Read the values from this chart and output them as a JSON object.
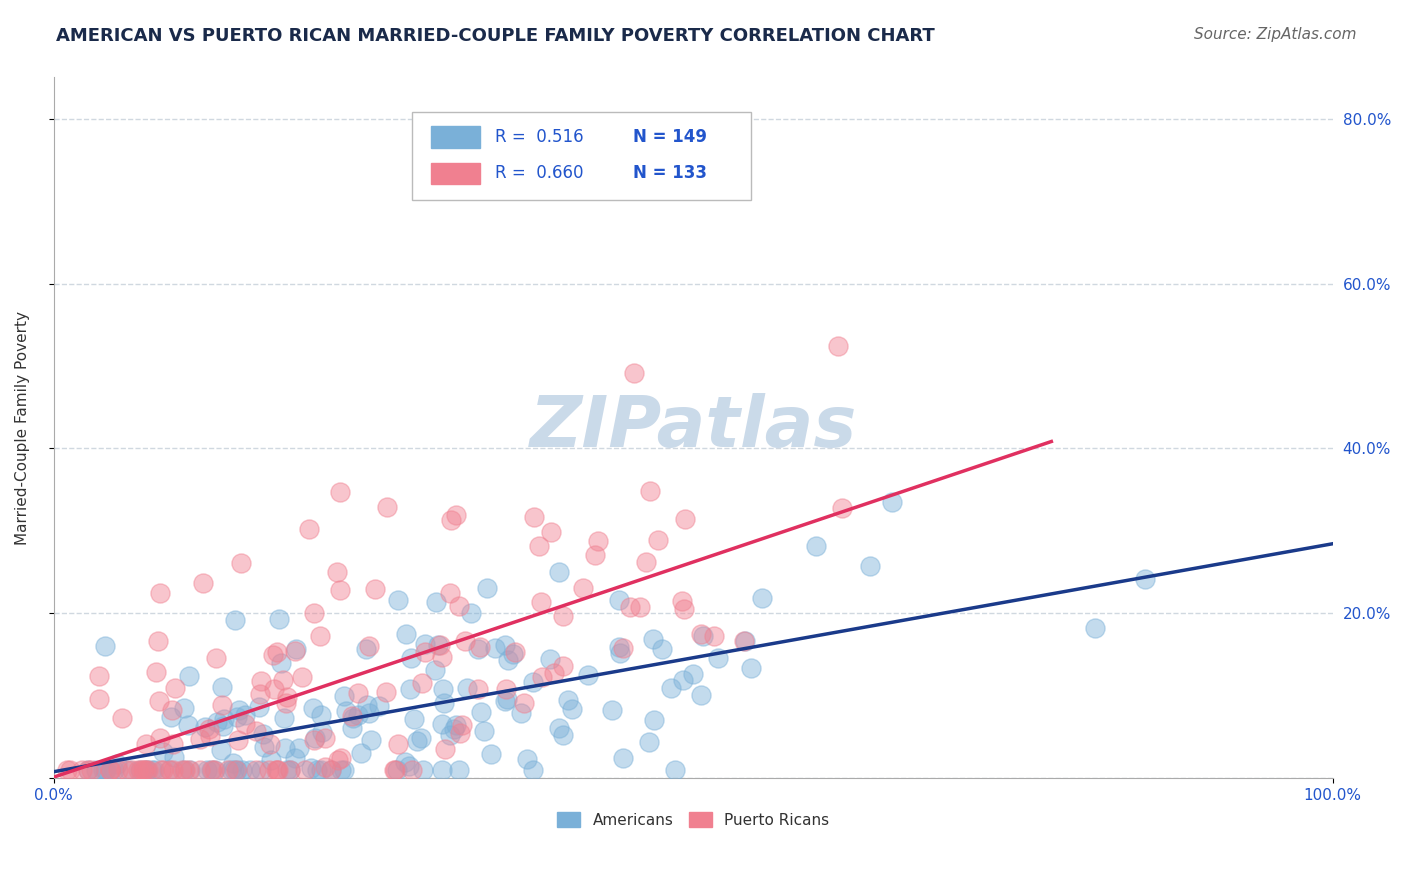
{
  "title": "AMERICAN VS PUERTO RICAN MARRIED-COUPLE FAMILY POVERTY CORRELATION CHART",
  "source": "Source: ZipAtlas.com",
  "ylabel": "Married-Couple Family Poverty",
  "xlim": [
    0,
    1.0
  ],
  "ylim": [
    0,
    0.85
  ],
  "yticks": [
    0.0,
    0.2,
    0.4,
    0.6,
    0.8
  ],
  "ytick_labels": [
    "",
    "20.0%",
    "40.0%",
    "60.0%",
    "80.0%"
  ],
  "xtick_labels": [
    "0.0%",
    "100.0%"
  ],
  "legend_r_am": "R =  0.516",
  "legend_n_am": "N = 149",
  "legend_r_pr": "R =  0.660",
  "legend_n_pr": "N = 133",
  "americans_R": 0.516,
  "americans_N": 149,
  "puertoricans_R": 0.66,
  "puertoricans_N": 133,
  "american_color": "#7ab0d8",
  "puertorican_color": "#f08090",
  "american_line_color": "#1a3a8a",
  "puertorican_line_color": "#e03060",
  "background_color": "#ffffff",
  "title_color": "#1a2a4a",
  "watermark": "ZIPatlas",
  "watermark_color": "#c8d8e8",
  "grid_color": "#d0d8e0",
  "title_fontsize": 13,
  "axis_label_fontsize": 11,
  "tick_label_fontsize": 11,
  "source_fontsize": 11,
  "legend_text_color": "#2255cc"
}
